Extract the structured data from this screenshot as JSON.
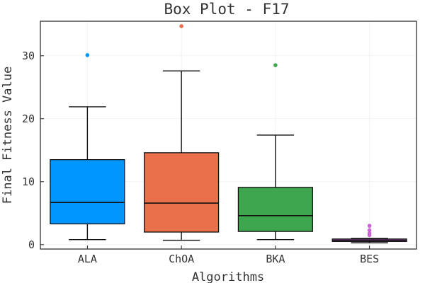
{
  "chart_data": {
    "type": "box",
    "title": "Box Plot - F17",
    "xlabel": "Algorithms",
    "ylabel": "Final Fitness Value",
    "ylim": [
      -0.5,
      36
    ],
    "yticks": [
      0,
      10,
      20,
      30
    ],
    "grid": true,
    "legend": "none",
    "categories": [
      "ALA",
      "ChOA",
      "BKA",
      "BES"
    ],
    "series": [
      {
        "category": "ALA",
        "color": "#0096ff",
        "whisker_low": 0.8,
        "q1": 3.3,
        "median": 6.7,
        "q3": 13.5,
        "whisker_high": 21.9,
        "outliers": [
          30.1
        ]
      },
      {
        "category": "ChOA",
        "color": "#e9704a",
        "whisker_low": 0.7,
        "q1": 2.0,
        "median": 6.6,
        "q3": 14.6,
        "whisker_high": 27.6,
        "outliers": [
          34.7
        ]
      },
      {
        "category": "BKA",
        "color": "#3ea64f",
        "whisker_low": 0.8,
        "q1": 2.1,
        "median": 4.6,
        "q3": 9.1,
        "whisker_high": 17.4,
        "outliers": [
          28.5
        ]
      },
      {
        "category": "BES",
        "color": "#c964d6",
        "whisker_low": 0.3,
        "q1": 0.5,
        "median": 0.7,
        "q3": 0.9,
        "whisker_high": 1.0,
        "outliers": [
          1.5,
          1.8,
          2.3,
          3.0
        ]
      }
    ]
  }
}
